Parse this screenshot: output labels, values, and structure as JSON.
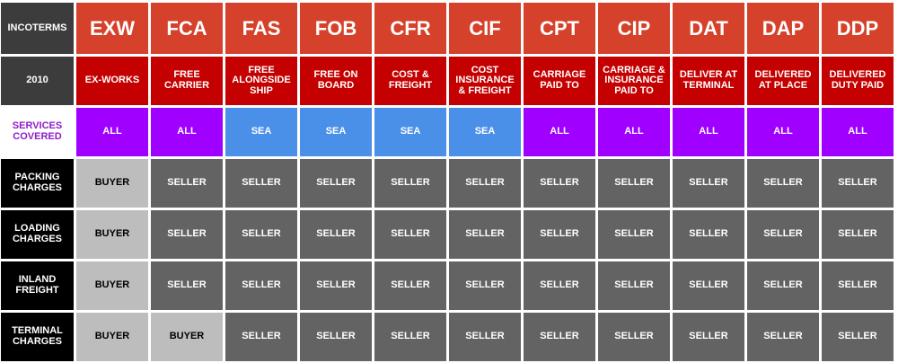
{
  "header": {
    "incoterms_label": "INCOTERMS",
    "year_label": "2010",
    "services_label": "SERVICES\nCOVERED"
  },
  "terms": [
    {
      "code": "EXW",
      "name": "EX-WORKS",
      "services": "ALL"
    },
    {
      "code": "FCA",
      "name": "FREE CARRIER",
      "services": "ALL"
    },
    {
      "code": "FAS",
      "name": "FREE ALONGSIDE SHIP",
      "services": "SEA"
    },
    {
      "code": "FOB",
      "name": "FREE ON BOARD",
      "services": "SEA"
    },
    {
      "code": "CFR",
      "name": "COST & FREIGHT",
      "services": "SEA"
    },
    {
      "code": "CIF",
      "name": "COST INSURANCE & FREIGHT",
      "services": "SEA"
    },
    {
      "code": "CPT",
      "name": "CARRIAGE PAID TO",
      "services": "ALL"
    },
    {
      "code": "CIP",
      "name": "CARRIAGE & INSURANCE PAID TO",
      "services": "ALL"
    },
    {
      "code": "DAT",
      "name": "DELIVER AT TERMINAL",
      "services": "ALL"
    },
    {
      "code": "DAP",
      "name": "DELIVERED AT PLACE",
      "services": "ALL"
    },
    {
      "code": "DDP",
      "name": "DELIVERED DUTY PAID",
      "services": "ALL"
    }
  ],
  "rows": [
    {
      "label": "PACKING CHARGES",
      "values": [
        "BUYER",
        "SELLER",
        "SELLER",
        "SELLER",
        "SELLER",
        "SELLER",
        "SELLER",
        "SELLER",
        "SELLER",
        "SELLER",
        "SELLER"
      ]
    },
    {
      "label": "LOADING CHARGES",
      "values": [
        "BUYER",
        "SELLER",
        "SELLER",
        "SELLER",
        "SELLER",
        "SELLER",
        "SELLER",
        "SELLER",
        "SELLER",
        "SELLER",
        "SELLER"
      ]
    },
    {
      "label": "INLAND FREIGHT",
      "values": [
        "BUYER",
        "SELLER",
        "SELLER",
        "SELLER",
        "SELLER",
        "SELLER",
        "SELLER",
        "SELLER",
        "SELLER",
        "SELLER",
        "SELLER"
      ]
    },
    {
      "label": "TERMINAL CHARGES",
      "values": [
        "BUYER",
        "BUYER",
        "SELLER",
        "SELLER",
        "SELLER",
        "SELLER",
        "SELLER",
        "SELLER",
        "SELLER",
        "SELLER",
        "SELLER"
      ]
    }
  ],
  "colors": {
    "term_header": "#d5412a",
    "term_fullname": "#c40000",
    "services_all": "#9f00ff",
    "services_sea": "#4a8fe8",
    "seller": "#636363",
    "buyer": "#bdbdbd",
    "label_bg": "#000000",
    "services_label_text": "#8e1cc9"
  }
}
